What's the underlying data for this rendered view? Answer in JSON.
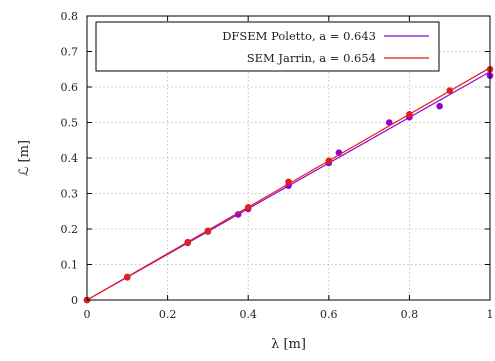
{
  "chart_data": {
    "type": "scatter",
    "xlabel": "λ [m]",
    "ylabel": "ℒ [m]",
    "xlim": [
      0,
      1
    ],
    "ylim": [
      0,
      0.8
    ],
    "x_ticks": [
      "0",
      "0.2",
      "0.4",
      "0.6",
      "0.8",
      "1"
    ],
    "y_ticks": [
      "0",
      "0.1",
      "0.2",
      "0.3",
      "0.4",
      "0.5",
      "0.6",
      "0.7",
      "0.8"
    ],
    "grid": true,
    "legend_position": "top-right",
    "series": [
      {
        "name": "DFSEM Poletto, a = 0.643",
        "color": "#9400d3",
        "slope": 0.643,
        "points": [
          [
            0,
            0
          ],
          [
            0.1,
            0.064
          ],
          [
            0.25,
            0.161
          ],
          [
            0.3,
            0.193
          ],
          [
            0.375,
            0.241
          ],
          [
            0.4,
            0.257
          ],
          [
            0.5,
            0.322
          ],
          [
            0.6,
            0.386
          ],
          [
            0.625,
            0.415
          ],
          [
            0.75,
            0.5
          ],
          [
            0.8,
            0.515
          ],
          [
            0.875,
            0.546
          ],
          [
            1.0,
            0.632
          ]
        ]
      },
      {
        "name": "SEM Jarrin, a = 0.654",
        "color": "#e0201b",
        "slope": 0.654,
        "points": [
          [
            0,
            0
          ],
          [
            0.1,
            0.065
          ],
          [
            0.25,
            0.163
          ],
          [
            0.3,
            0.195
          ],
          [
            0.4,
            0.261
          ],
          [
            0.5,
            0.333
          ],
          [
            0.6,
            0.392
          ],
          [
            0.8,
            0.523
          ],
          [
            0.9,
            0.59
          ],
          [
            1.0,
            0.65
          ]
        ]
      }
    ]
  }
}
